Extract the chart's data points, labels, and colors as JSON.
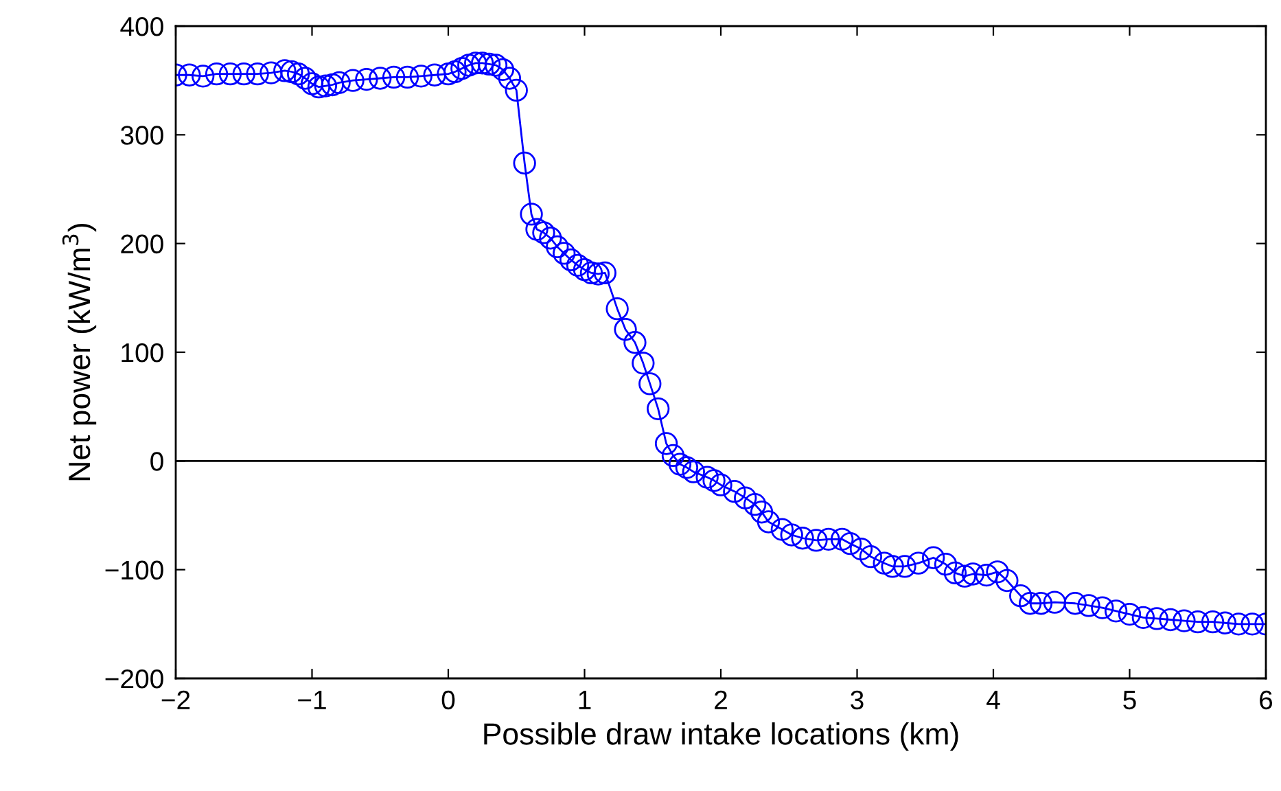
{
  "chart_data": {
    "type": "line",
    "xlabel": "Possible draw intake locations (km)",
    "ylabel": "Net power (kW/m$^{3}$)",
    "series": [
      {
        "color": "#0000ff",
        "x": [
          -2.0,
          -1.9,
          -1.8,
          -1.7,
          -1.6,
          -1.5,
          -1.4,
          -1.3,
          -1.2,
          -1.15,
          -1.1,
          -1.05,
          -1.0,
          -0.95,
          -0.9,
          -0.85,
          -0.8,
          -0.7,
          -0.6,
          -0.5,
          -0.4,
          -0.3,
          -0.2,
          -0.1,
          0.0,
          0.05,
          0.1,
          0.15,
          0.2,
          0.25,
          0.3,
          0.35,
          0.4,
          0.45,
          0.5,
          0.56,
          0.61,
          0.65,
          0.7,
          0.75,
          0.8,
          0.85,
          0.9,
          0.95,
          1.0,
          1.05,
          1.1,
          1.15,
          1.24,
          1.3,
          1.37,
          1.43,
          1.48,
          1.54,
          1.6,
          1.65,
          1.7,
          1.75,
          1.8,
          1.9,
          1.95,
          2.0,
          2.1,
          2.18,
          2.25,
          2.3,
          2.35,
          2.45,
          2.52,
          2.6,
          2.7,
          2.79,
          2.89,
          2.95,
          3.03,
          3.1,
          3.2,
          3.26,
          3.35,
          3.45,
          3.56,
          3.65,
          3.72,
          3.79,
          3.85,
          3.95,
          4.03,
          4.1,
          4.2,
          4.27,
          4.35,
          4.45,
          4.6,
          4.7,
          4.8,
          4.9,
          5.0,
          5.1,
          5.2,
          5.3,
          5.4,
          5.5,
          5.61,
          5.7,
          5.8,
          5.9,
          6.0
        ],
        "values": [
          355,
          355,
          354,
          356,
          356,
          356,
          356,
          357,
          359,
          358,
          356,
          352,
          347,
          344,
          345,
          346,
          348,
          350,
          351,
          352,
          353,
          353,
          354,
          355,
          356,
          358,
          361,
          364,
          366,
          366,
          365,
          364,
          360,
          352,
          341,
          274,
          227,
          213,
          210,
          205,
          197,
          191,
          185,
          180,
          176,
          173,
          172,
          173,
          140,
          121,
          109,
          90,
          71,
          48,
          16,
          5,
          -3,
          -6,
          -10,
          -15,
          -18,
          -22,
          -28,
          -34,
          -40,
          -47,
          -56,
          -63,
          -68,
          -71,
          -73,
          -72,
          -72,
          -76,
          -81,
          -88,
          -94,
          -97,
          -97,
          -94,
          -89,
          -95,
          -103,
          -106,
          -104,
          -105,
          -102,
          -110,
          -124,
          -131,
          -131,
          -130,
          -131,
          -133,
          -135,
          -138,
          -141,
          -144,
          -145,
          -146,
          -147,
          -148,
          -148,
          -149,
          -150,
          -150,
          -150
        ]
      }
    ],
    "xlim": [
      -2,
      6
    ],
    "ylim": [
      -200,
      400
    ],
    "xticks": [
      {
        "value": -2,
        "label": "−2"
      },
      {
        "value": -1,
        "label": "−1"
      },
      0,
      1,
      2,
      3,
      4,
      5,
      6
    ],
    "yticks": [
      {
        "value": -200,
        "label": "−200"
      },
      {
        "value": -100,
        "label": "−100"
      },
      0,
      100,
      200,
      300,
      400
    ],
    "ref_lines": [
      {
        "axis": "y",
        "value": 0,
        "color": "#000000"
      }
    ],
    "marker": "circle",
    "line_style": "solid",
    "grid": false,
    "legend": false
  }
}
